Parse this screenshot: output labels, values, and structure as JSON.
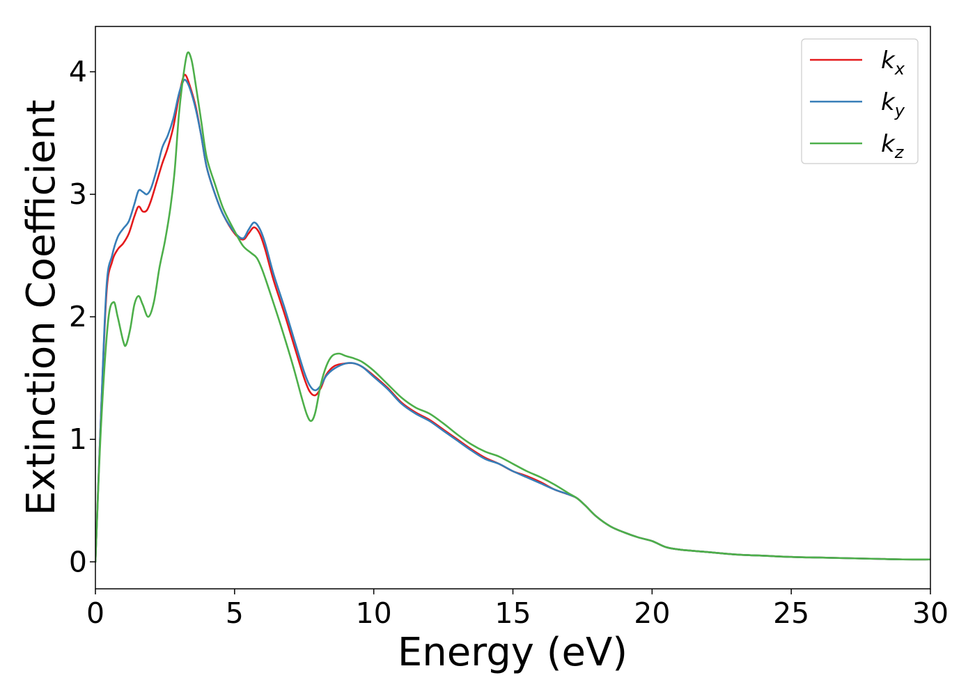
{
  "chart_data": {
    "type": "line",
    "xlabel": "Energy (eV)",
    "ylabel": "Extinction Coefficient",
    "xlim": [
      0,
      30
    ],
    "ylim": [
      -0.22,
      4.37
    ],
    "xticks": [
      "0",
      "5",
      "10",
      "15",
      "20",
      "25",
      "30"
    ],
    "yticks": [
      "0",
      "1",
      "2",
      "3",
      "4"
    ],
    "grid": false,
    "legend_position": "top-right",
    "series": [
      {
        "name": "k_x",
        "label_main": "k",
        "label_sub": "x",
        "color": "#e41a1c",
        "x": [
          0,
          0.2,
          0.4,
          0.6,
          0.8,
          1.0,
          1.2,
          1.4,
          1.55,
          1.7,
          1.85,
          2.0,
          2.2,
          2.4,
          2.6,
          2.8,
          3.0,
          3.15,
          3.25,
          3.4,
          3.6,
          3.8,
          4.0,
          4.3,
          4.6,
          5.0,
          5.3,
          5.5,
          5.7,
          5.9,
          6.1,
          6.4,
          6.8,
          7.2,
          7.5,
          7.7,
          7.9,
          8.1,
          8.3,
          8.6,
          9.0,
          9.3,
          9.6,
          10.0,
          10.5,
          11.0,
          11.5,
          12.0,
          12.5,
          13.0,
          13.5,
          14.0,
          14.5,
          15.0,
          15.5,
          16.0,
          16.5,
          17.0,
          17.3,
          17.6,
          18.0,
          18.5,
          19.0,
          19.5,
          20.0,
          20.5,
          21.0,
          22.0,
          23.0,
          24.0,
          25.0,
          26.0,
          27.0,
          28.0,
          29.0,
          30.0
        ],
        "values": [
          0.0,
          1.2,
          2.2,
          2.45,
          2.55,
          2.6,
          2.68,
          2.82,
          2.9,
          2.86,
          2.87,
          2.95,
          3.1,
          3.25,
          3.38,
          3.55,
          3.8,
          3.95,
          3.97,
          3.88,
          3.72,
          3.48,
          3.22,
          3.0,
          2.83,
          2.68,
          2.63,
          2.68,
          2.73,
          2.68,
          2.55,
          2.3,
          2.02,
          1.72,
          1.5,
          1.39,
          1.36,
          1.42,
          1.53,
          1.6,
          1.62,
          1.62,
          1.59,
          1.52,
          1.42,
          1.3,
          1.22,
          1.16,
          1.08,
          1.0,
          0.92,
          0.85,
          0.8,
          0.74,
          0.7,
          0.65,
          0.59,
          0.55,
          0.52,
          0.46,
          0.37,
          0.29,
          0.24,
          0.2,
          0.17,
          0.12,
          0.1,
          0.08,
          0.06,
          0.05,
          0.04,
          0.035,
          0.03,
          0.025,
          0.02,
          0.02
        ]
      },
      {
        "name": "k_y",
        "label_main": "k",
        "label_sub": "y",
        "color": "#377eb8",
        "x": [
          0,
          0.2,
          0.4,
          0.6,
          0.8,
          1.0,
          1.2,
          1.4,
          1.55,
          1.7,
          1.85,
          2.0,
          2.2,
          2.4,
          2.6,
          2.8,
          3.0,
          3.15,
          3.25,
          3.4,
          3.6,
          3.8,
          4.0,
          4.3,
          4.6,
          5.0,
          5.3,
          5.5,
          5.7,
          5.9,
          6.1,
          6.4,
          6.8,
          7.2,
          7.5,
          7.7,
          7.9,
          8.1,
          8.3,
          8.6,
          9.0,
          9.3,
          9.6,
          10.0,
          10.5,
          11.0,
          11.5,
          12.0,
          12.5,
          13.0,
          13.5,
          14.0,
          14.5,
          15.0,
          15.5,
          16.0,
          16.5,
          17.0,
          17.3,
          17.6,
          18.0,
          18.5,
          19.0,
          19.5,
          20.0,
          20.5,
          21.0,
          22.0,
          23.0,
          24.0,
          25.0,
          26.0,
          27.0,
          28.0,
          29.0,
          30.0
        ],
        "values": [
          0.0,
          1.2,
          2.25,
          2.5,
          2.65,
          2.72,
          2.78,
          2.92,
          3.03,
          3.02,
          3.0,
          3.05,
          3.2,
          3.38,
          3.48,
          3.62,
          3.82,
          3.92,
          3.93,
          3.86,
          3.7,
          3.48,
          3.22,
          3.0,
          2.83,
          2.69,
          2.64,
          2.71,
          2.77,
          2.72,
          2.6,
          2.35,
          2.07,
          1.77,
          1.55,
          1.44,
          1.4,
          1.44,
          1.52,
          1.58,
          1.62,
          1.62,
          1.59,
          1.51,
          1.41,
          1.29,
          1.21,
          1.15,
          1.07,
          0.99,
          0.91,
          0.84,
          0.8,
          0.74,
          0.69,
          0.64,
          0.59,
          0.55,
          0.52,
          0.46,
          0.37,
          0.29,
          0.24,
          0.2,
          0.17,
          0.12,
          0.1,
          0.08,
          0.06,
          0.05,
          0.04,
          0.035,
          0.03,
          0.025,
          0.02,
          0.02
        ]
      },
      {
        "name": "k_z",
        "label_main": "k",
        "label_sub": "z",
        "color": "#4daf4a",
        "x": [
          0,
          0.2,
          0.45,
          0.65,
          0.8,
          1.0,
          1.1,
          1.25,
          1.4,
          1.55,
          1.7,
          1.9,
          2.1,
          2.3,
          2.5,
          2.7,
          2.85,
          3.0,
          3.15,
          3.3,
          3.45,
          3.6,
          3.8,
          4.0,
          4.3,
          4.6,
          5.0,
          5.3,
          5.6,
          5.8,
          6.0,
          6.3,
          6.7,
          7.1,
          7.4,
          7.6,
          7.75,
          7.9,
          8.1,
          8.3,
          8.5,
          8.75,
          9.0,
          9.3,
          9.6,
          10.0,
          10.5,
          11.0,
          11.5,
          12.0,
          12.5,
          13.0,
          13.5,
          14.0,
          14.5,
          15.0,
          15.5,
          16.0,
          16.5,
          17.0,
          17.3,
          17.6,
          18.0,
          18.5,
          19.0,
          19.5,
          20.0,
          20.5,
          21.0,
          22.0,
          23.0,
          24.0,
          25.0,
          26.0,
          27.0,
          28.0,
          29.0,
          30.0
        ],
        "values": [
          0.0,
          1.1,
          1.95,
          2.12,
          2.0,
          1.8,
          1.77,
          1.9,
          2.1,
          2.17,
          2.1,
          2.0,
          2.12,
          2.4,
          2.62,
          2.9,
          3.2,
          3.65,
          3.95,
          4.15,
          4.1,
          3.9,
          3.6,
          3.3,
          3.08,
          2.88,
          2.7,
          2.58,
          2.52,
          2.48,
          2.38,
          2.18,
          1.9,
          1.6,
          1.35,
          1.2,
          1.15,
          1.22,
          1.45,
          1.6,
          1.68,
          1.7,
          1.68,
          1.66,
          1.63,
          1.56,
          1.45,
          1.34,
          1.26,
          1.21,
          1.13,
          1.04,
          0.96,
          0.9,
          0.86,
          0.8,
          0.74,
          0.69,
          0.63,
          0.56,
          0.52,
          0.46,
          0.37,
          0.29,
          0.24,
          0.2,
          0.17,
          0.12,
          0.1,
          0.08,
          0.06,
          0.05,
          0.04,
          0.035,
          0.03,
          0.025,
          0.02,
          0.02
        ]
      }
    ]
  }
}
